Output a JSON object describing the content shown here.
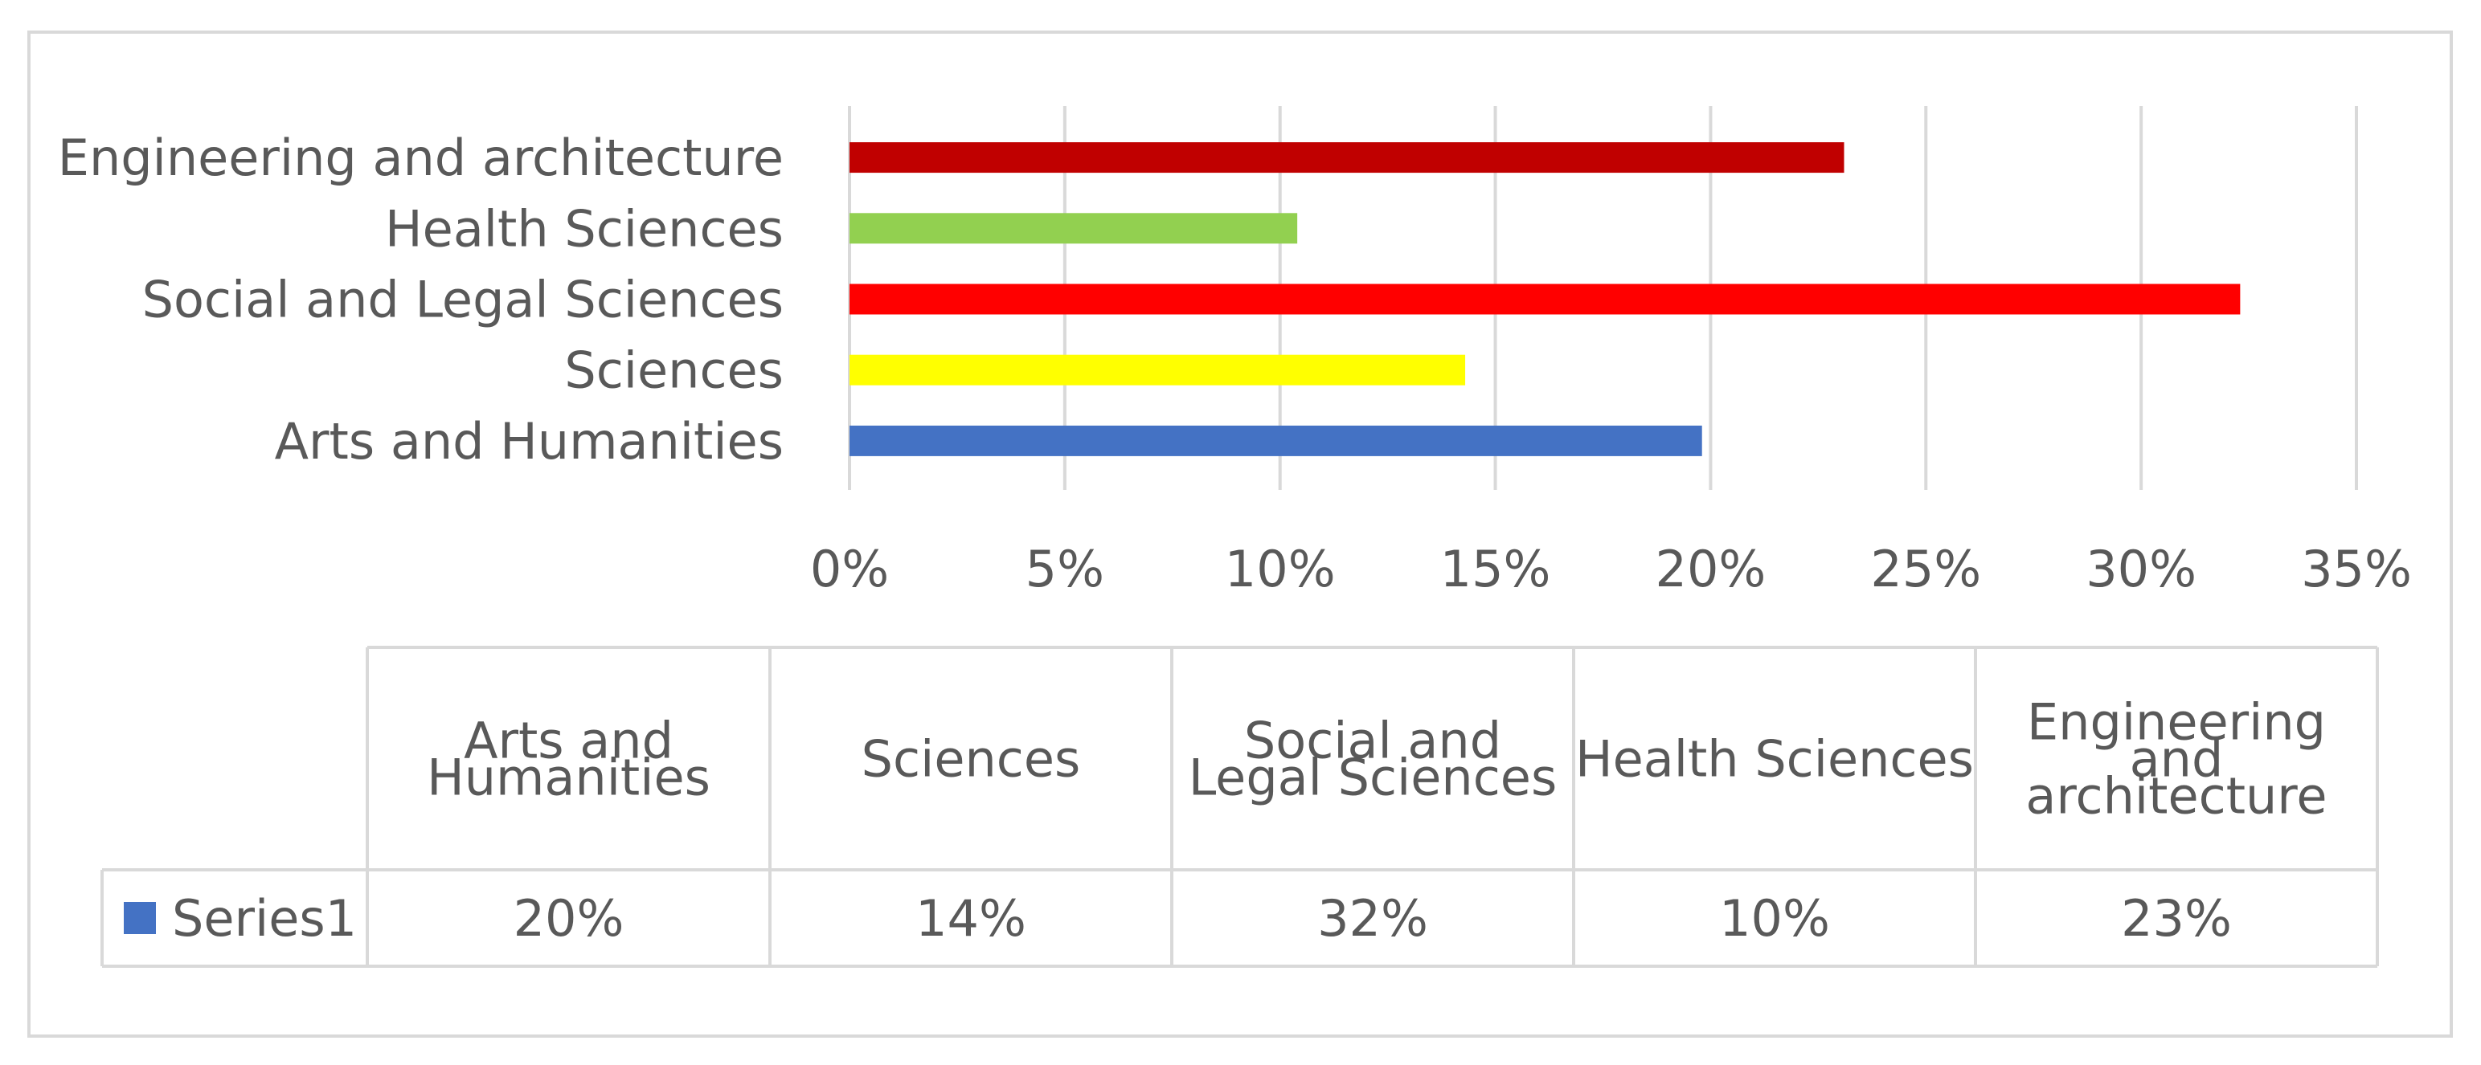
{
  "chart_data": {
    "type": "bar",
    "orientation": "horizontal",
    "title": "",
    "xlabel": "",
    "ylabel": "",
    "categories": [
      "Arts and Humanities",
      "Sciences",
      "Social and Legal Sciences",
      "Health Sciences",
      "Engineering and architecture"
    ],
    "series": [
      {
        "name": "Series1",
        "values": [
          0.198,
          0.143,
          0.323,
          0.104,
          0.231
        ],
        "colors": [
          "#4472C4",
          "#FFFF00",
          "#FF0000",
          "#92D050",
          "#C00000"
        ]
      }
    ],
    "xlim": [
      0,
      0.35
    ],
    "x_ticks": [
      0,
      0.05,
      0.1,
      0.15,
      0.2,
      0.25,
      0.3,
      0.35
    ],
    "x_tick_labels": [
      "0%",
      "5%",
      "10%",
      "15%",
      "20%",
      "25%",
      "30%",
      "35%"
    ],
    "grid": "vertical",
    "legend": "data-table-left",
    "data_table": {
      "headers": [
        "Arts and Humanities",
        "Sciences",
        "Social and Legal Sciences",
        "Health Sciences",
        "Engineering and architecture"
      ],
      "header_lines": [
        [
          "Arts and",
          "Humanities"
        ],
        [
          "Sciences"
        ],
        [
          "Social and",
          "Legal Sciences"
        ],
        [
          "Health Sciences"
        ],
        [
          "Engineering",
          "and",
          "architecture"
        ]
      ],
      "row_label": "Series1",
      "row_values": [
        "20%",
        "14%",
        "32%",
        "10%",
        "23%"
      ]
    }
  }
}
